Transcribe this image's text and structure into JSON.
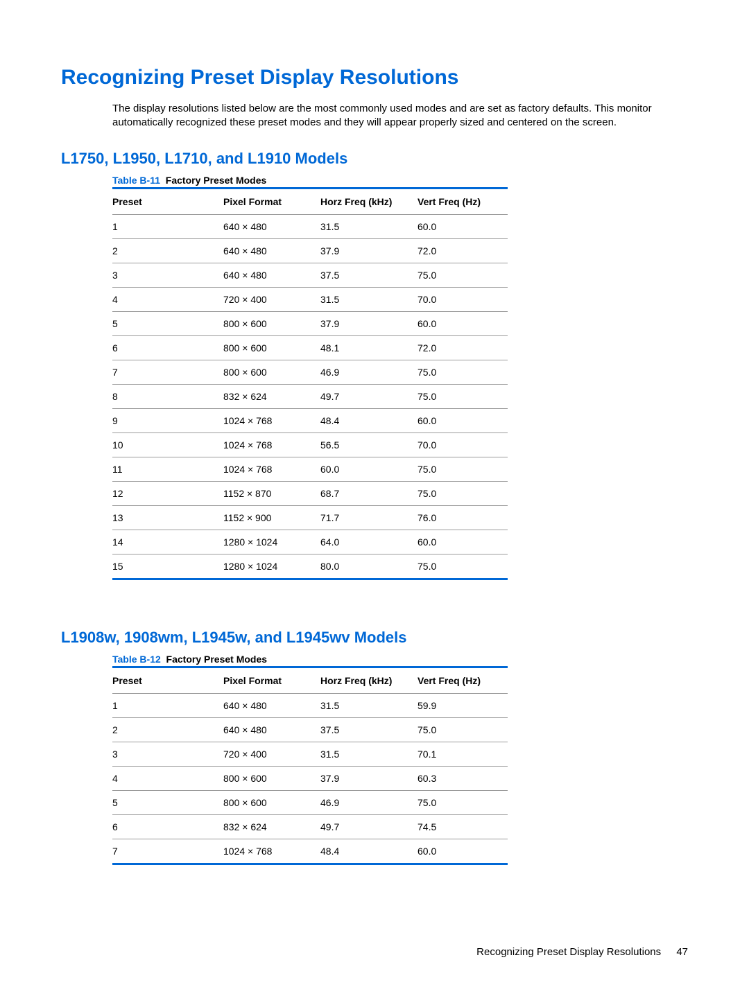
{
  "colors": {
    "heading_blue": "#0068d6",
    "table_border_blue": "#0068d6",
    "row_border_gray": "#9a9a9a",
    "text": "#000000",
    "background": "#ffffff"
  },
  "typography": {
    "main_heading_fontsize": 30,
    "sub_heading_fontsize": 22,
    "body_fontsize": 15,
    "table_fontsize": 14
  },
  "heading": "Recognizing Preset Display Resolutions",
  "intro": "The display resolutions listed below are the most commonly used modes and are set as factory defaults. This monitor automatically recognized these preset modes and they will appear properly sized and centered on the screen.",
  "section1": {
    "title": "L1750, L1950, L1710, and L1910 Models",
    "table": {
      "caption_label": "Table B-11",
      "caption_title": "Factory Preset Modes",
      "columns": [
        "Preset",
        "Pixel Format",
        "Horz Freq (kHz)",
        "Vert Freq (Hz)"
      ],
      "rows": [
        [
          "1",
          "640 × 480",
          "31.5",
          "60.0"
        ],
        [
          "2",
          "640 × 480",
          "37.9",
          "72.0"
        ],
        [
          "3",
          "640 × 480",
          "37.5",
          "75.0"
        ],
        [
          "4",
          "720 × 400",
          "31.5",
          "70.0"
        ],
        [
          "5",
          "800 × 600",
          "37.9",
          "60.0"
        ],
        [
          "6",
          "800 × 600",
          "48.1",
          "72.0"
        ],
        [
          "7",
          "800 × 600",
          "46.9",
          "75.0"
        ],
        [
          "8",
          "832 × 624",
          "49.7",
          "75.0"
        ],
        [
          "9",
          "1024 × 768",
          "48.4",
          "60.0"
        ],
        [
          "10",
          "1024 × 768",
          "56.5",
          "70.0"
        ],
        [
          "11",
          "1024 × 768",
          "60.0",
          "75.0"
        ],
        [
          "12",
          "1152 × 870",
          "68.7",
          "75.0"
        ],
        [
          "13",
          "1152 × 900",
          "71.7",
          "76.0"
        ],
        [
          "14",
          "1280 × 1024",
          "64.0",
          "60.0"
        ],
        [
          "15",
          "1280 × 1024",
          "80.0",
          "75.0"
        ]
      ]
    }
  },
  "section2": {
    "title": "L1908w, 1908wm, L1945w, and L1945wv Models",
    "table": {
      "caption_label": "Table B-12",
      "caption_title": "Factory Preset Modes",
      "columns": [
        "Preset",
        "Pixel Format",
        "Horz Freq (kHz)",
        "Vert Freq (Hz)"
      ],
      "rows": [
        [
          "1",
          "640 × 480",
          "31.5",
          "59.9"
        ],
        [
          "2",
          "640 × 480",
          "37.5",
          "75.0"
        ],
        [
          "3",
          "720 × 400",
          "31.5",
          "70.1"
        ],
        [
          "4",
          "800 × 600",
          "37.9",
          "60.3"
        ],
        [
          "5",
          "800 × 600",
          "46.9",
          "75.0"
        ],
        [
          "6",
          "832 × 624",
          "49.7",
          "74.5"
        ],
        [
          "7",
          "1024 × 768",
          "48.4",
          "60.0"
        ]
      ]
    }
  },
  "footer": {
    "text": "Recognizing Preset Display Resolutions",
    "page": "47"
  }
}
